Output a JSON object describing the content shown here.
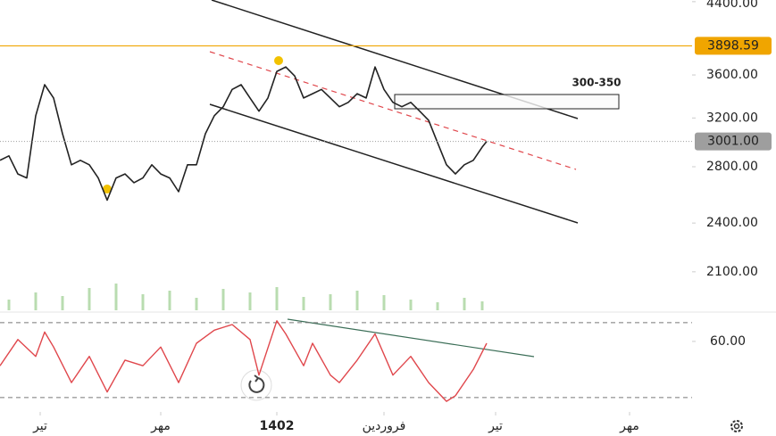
{
  "chart_data": {
    "type": "line",
    "log_scale": true,
    "color": "#222222",
    "x": [
      0,
      2,
      4,
      6,
      8,
      10,
      12,
      14,
      16,
      18,
      20,
      22,
      24,
      26,
      28,
      30,
      32,
      34,
      36,
      38,
      40,
      42,
      44,
      46,
      48,
      50,
      52,
      54,
      56,
      58,
      60,
      62,
      64,
      66,
      68,
      70,
      72,
      74,
      76,
      78,
      80,
      82,
      84,
      86,
      88,
      90,
      92,
      94,
      96,
      98,
      100,
      102,
      104,
      106,
      108,
      109
    ],
    "values": [
      2850,
      2885,
      2745,
      2715,
      3220,
      3505,
      3380,
      3065,
      2815,
      2850,
      2815,
      2715,
      2555,
      2715,
      2745,
      2680,
      2715,
      2815,
      2745,
      2715,
      2615,
      2815,
      2815,
      3065,
      3220,
      3300,
      3460,
      3505,
      3380,
      3260,
      3380,
      3635,
      3680,
      3590,
      3380,
      3420,
      3460,
      3380,
      3300,
      3340,
      3420,
      3380,
      3680,
      3460,
      3340,
      3300,
      3340,
      3260,
      3180,
      2990,
      2815,
      2745,
      2815,
      2850,
      2955,
      3001
    ],
    "xlim": [
      0,
      155
    ],
    "ylim": [
      1890,
      4420
    ],
    "yticks": [
      {
        "value": 4400,
        "label": "4400.00"
      },
      {
        "value": 3600,
        "label": "3600.00"
      },
      {
        "value": 3200,
        "label": "3200.00"
      },
      {
        "value": 2800,
        "label": "2800.00"
      },
      {
        "value": 2400,
        "label": "2400.00"
      },
      {
        "value": 2100,
        "label": "2100.00"
      }
    ],
    "xticks": [
      {
        "value": 9,
        "label": "تیر"
      },
      {
        "value": 36,
        "label": "مهر"
      },
      {
        "value": 62,
        "label": "1402"
      },
      {
        "value": 86,
        "label": "فروردین"
      },
      {
        "value": 111,
        "label": "تیر"
      },
      {
        "value": 141,
        "label": "مهر"
      }
    ],
    "price_lines": [
      {
        "value": 3898.59,
        "label": "3898.59",
        "color": "#f0a500"
      },
      {
        "value": 3001,
        "label": "3001.00",
        "color": "#9e9e9e"
      }
    ],
    "zone_label": "300-350",
    "volume": {
      "color": "#b9dcb0",
      "ylim": [
        0,
        60
      ],
      "x": [
        2,
        8,
        14,
        20,
        26,
        32,
        38,
        44,
        50,
        56,
        62,
        68,
        74,
        80,
        86,
        92,
        98,
        104,
        108
      ],
      "values": [
        12,
        20,
        16,
        25,
        30,
        18,
        22,
        14,
        24,
        20,
        26,
        15,
        18,
        22,
        17,
        12,
        9,
        14,
        10
      ]
    },
    "rsi": {
      "color": "#e0474c",
      "ylim": [
        23.3,
        73.3
      ],
      "levels": [
        30,
        70
      ],
      "x": [
        0,
        4,
        8,
        10,
        12,
        16,
        20,
        24,
        28,
        32,
        36,
        40,
        44,
        48,
        52,
        56,
        58,
        62,
        64,
        68,
        70,
        74,
        76,
        80,
        84,
        88,
        92,
        96,
        100,
        102,
        104,
        106,
        109
      ],
      "values": [
        47,
        61,
        52,
        65,
        57,
        38,
        52,
        33,
        50,
        47,
        57,
        38,
        59,
        66,
        69,
        61,
        42,
        71,
        64,
        47,
        59,
        42,
        38,
        50,
        64,
        42,
        52,
        38,
        28,
        31,
        38,
        45,
        59
      ],
      "yticks": [
        {
          "value": 60,
          "label": "60.00"
        }
      ]
    }
  }
}
